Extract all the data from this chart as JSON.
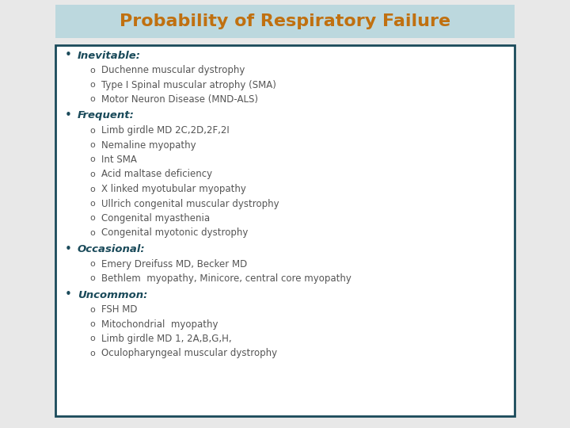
{
  "title": "Probability of Respiratory Failure",
  "title_color": "#c07010",
  "title_bg_color": "#bcd8de",
  "title_fontsize": 16,
  "content_bg_color": "#ffffff",
  "border_color": "#1a4a5a",
  "bullet_color": "#1a4a5a",
  "heading_color": "#1a4a5a",
  "sub_color": "#555555",
  "fig_bg": "#e8e8e8",
  "sections": [
    {
      "heading": "Inevitable:",
      "items": [
        "Duchenne muscular dystrophy",
        "Type I Spinal muscular atrophy (SMA)",
        "Motor Neuron Disease (MND-ALS)"
      ]
    },
    {
      "heading": "Frequent:",
      "items": [
        "Limb girdle MD 2C,2D,2F,2I",
        "Nemaline myopathy",
        "Int SMA",
        "Acid maltase deficiency",
        "X linked myotubular myopathy",
        "Ullrich congenital muscular dystrophy",
        "Congenital myasthenia",
        "Congenital myotonic dystrophy"
      ]
    },
    {
      "heading": "Occasional:",
      "items": [
        "Emery Dreifuss MD, Becker MD",
        "Bethlem  myopathy, Minicore, central core myopathy"
      ]
    },
    {
      "heading": "Uncommon:",
      "items": [
        "FSH MD",
        "Mitochondrial  myopathy",
        "Limb girdle MD 1, 2A,B,G,H,",
        "Oculopharyngeal muscular dystrophy"
      ]
    }
  ]
}
